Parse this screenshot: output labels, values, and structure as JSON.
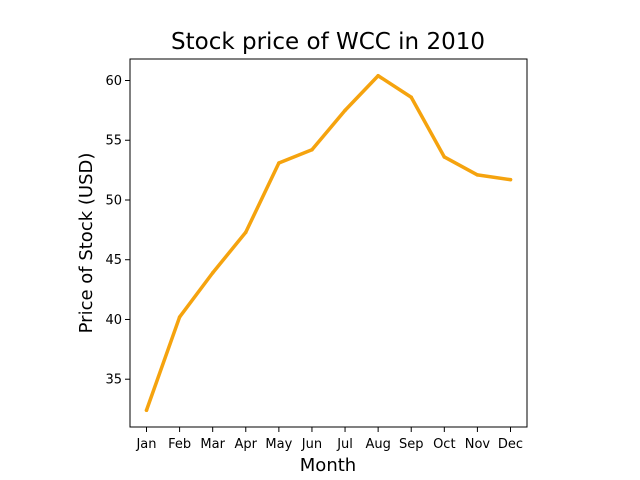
{
  "chart_data": {
    "type": "line",
    "title": "Stock price of WCC in 2010",
    "xlabel": "Month",
    "ylabel": "Price of Stock (USD)",
    "categories": [
      "Jan",
      "Feb",
      "Mar",
      "Apr",
      "May",
      "Jun",
      "Jul",
      "Aug",
      "Sep",
      "Oct",
      "Nov",
      "Dec"
    ],
    "series": [
      {
        "values": [
          32.4,
          40.2,
          43.9,
          47.3,
          53.1,
          54.2,
          57.5,
          60.4,
          58.6,
          53.6,
          52.1,
          51.7
        ],
        "color": "#f5a30e"
      }
    ],
    "yticks": [
      35,
      40,
      45,
      50,
      55,
      60
    ],
    "ylim": [
      31.0,
      61.8
    ],
    "grid": false,
    "legend": "none"
  }
}
